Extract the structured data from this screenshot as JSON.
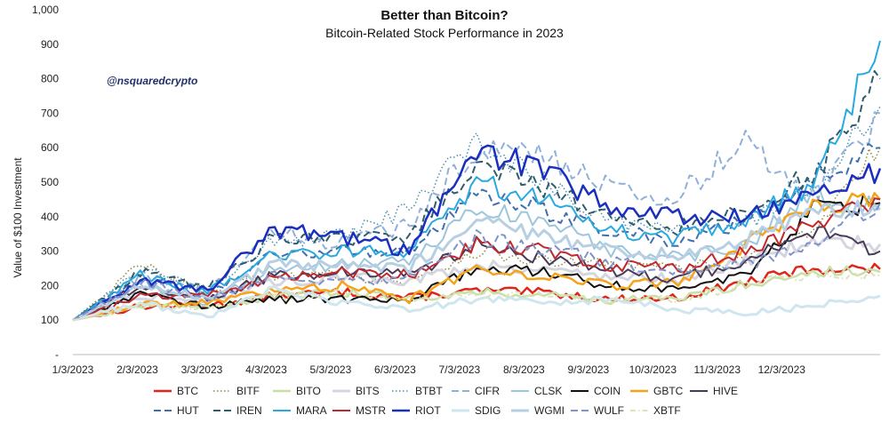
{
  "chart_data": {
    "type": "line",
    "title": "Better than Bitcoin?",
    "subtitle": "Bitcoin-Related Stock Performance in 2023",
    "ylabel": "Value of $100 Investment",
    "xlabel": "",
    "handle": "@nsquaredcrypto",
    "ylim": [
      0,
      1000
    ],
    "y_ticks": [
      0,
      100,
      200,
      300,
      400,
      500,
      600,
      700,
      800,
      900,
      1000
    ],
    "y_tick_labels": [
      "-",
      "100",
      "200",
      "300",
      "400",
      "500",
      "600",
      "700",
      "800",
      "900",
      "1,000"
    ],
    "x_tick_labels": [
      "1/3/2023",
      "2/3/2023",
      "3/3/2023",
      "4/3/2023",
      "5/3/2023",
      "6/3/2023",
      "7/3/2023",
      "8/3/2023",
      "9/3/2023",
      "10/3/2023",
      "11/3/2023",
      "12/3/2023"
    ],
    "grid": false,
    "legend_position": "bottom",
    "series": [
      {
        "name": "BTC",
        "color": "#e0251b",
        "dash": "solid",
        "width": 2.5,
        "values": [
          100,
          140,
          142,
          170,
          182,
          165,
          185,
          180,
          160,
          165,
          210,
          250,
          248
        ]
      },
      {
        "name": "BITF",
        "color": "#8a8a3a",
        "dash": "dotted",
        "width": 1.5,
        "values": [
          100,
          260,
          180,
          230,
          230,
          210,
          300,
          270,
          260,
          250,
          280,
          360,
          600
        ]
      },
      {
        "name": "BITO",
        "color": "#c9dfa8",
        "dash": "solid",
        "width": 2.5,
        "values": [
          100,
          142,
          140,
          168,
          180,
          165,
          180,
          175,
          158,
          162,
          205,
          240,
          240
        ]
      },
      {
        "name": "BITS",
        "color": "#d5d5e0",
        "dash": "solid",
        "width": 3,
        "values": [
          100,
          170,
          160,
          210,
          225,
          215,
          260,
          250,
          225,
          220,
          270,
          330,
          320
        ]
      },
      {
        "name": "BTBT",
        "color": "#4a8fb0",
        "dash": "dotted",
        "width": 1.5,
        "values": [
          100,
          250,
          200,
          330,
          340,
          420,
          620,
          500,
          390,
          370,
          380,
          480,
          720
        ]
      },
      {
        "name": "CIFR",
        "color": "#8fb0d8",
        "dash": "dashed",
        "width": 2,
        "values": [
          100,
          230,
          180,
          360,
          320,
          380,
          600,
          580,
          480,
          460,
          620,
          460,
          700
        ]
      },
      {
        "name": "CLSK",
        "color": "#9cc6dc",
        "dash": "solid",
        "width": 2,
        "values": [
          100,
          200,
          150,
          250,
          260,
          270,
          420,
          390,
          300,
          280,
          320,
          460,
          440
        ]
      },
      {
        "name": "COIN",
        "color": "#111111",
        "dash": "solid",
        "width": 2,
        "values": [
          100,
          180,
          140,
          160,
          160,
          160,
          250,
          240,
          200,
          190,
          230,
          420,
          440
        ]
      },
      {
        "name": "GBTC",
        "color": "#f5a31a",
        "dash": "solid",
        "width": 2.5,
        "values": [
          100,
          145,
          150,
          185,
          200,
          160,
          250,
          230,
          200,
          210,
          320,
          420,
          450
        ]
      },
      {
        "name": "HIVE",
        "color": "#4a3a5a",
        "dash": "solid",
        "width": 2,
        "values": [
          100,
          200,
          160,
          230,
          240,
          230,
          320,
          280,
          240,
          220,
          270,
          360,
          300
        ]
      },
      {
        "name": "HUT",
        "color": "#3f6fb0",
        "dash": "dashed",
        "width": 2,
        "values": [
          100,
          220,
          170,
          290,
          300,
          300,
          480,
          420,
          360,
          320,
          390,
          520,
          600
        ]
      },
      {
        "name": "IREN",
        "color": "#2f5d6b",
        "dash": "dashed",
        "width": 2,
        "values": [
          100,
          240,
          190,
          340,
          330,
          340,
          560,
          480,
          400,
          370,
          420,
          520,
          800
        ]
      },
      {
        "name": "MARA",
        "color": "#29a9e0",
        "dash": "solid",
        "width": 2,
        "values": [
          100,
          230,
          180,
          290,
          300,
          300,
          500,
          450,
          360,
          340,
          380,
          500,
          910
        ]
      },
      {
        "name": "MSTR",
        "color": "#c0282d",
        "dash": "solid",
        "width": 2,
        "values": [
          100,
          170,
          170,
          220,
          240,
          230,
          320,
          300,
          260,
          250,
          300,
          380,
          450
        ]
      },
      {
        "name": "RIOT",
        "color": "#1b2fbf",
        "dash": "solid",
        "width": 2.5,
        "values": [
          100,
          210,
          190,
          360,
          340,
          300,
          590,
          540,
          420,
          400,
          410,
          470,
          540
        ]
      },
      {
        "name": "SDIG",
        "color": "#cfe6ef",
        "dash": "solid",
        "width": 3,
        "values": [
          100,
          150,
          110,
          190,
          150,
          130,
          160,
          150,
          160,
          130,
          120,
          140,
          170
        ]
      },
      {
        "name": "WGMI",
        "color": "#b6cfe3",
        "dash": "solid",
        "width": 3,
        "values": [
          100,
          195,
          165,
          260,
          260,
          250,
          380,
          350,
          300,
          290,
          330,
          420,
          420
        ]
      },
      {
        "name": "WULF",
        "color": "#7d93c9",
        "dash": "dashed",
        "width": 2,
        "values": [
          100,
          210,
          160,
          230,
          210,
          220,
          340,
          310,
          270,
          240,
          260,
          320,
          440
        ]
      },
      {
        "name": "XBTF",
        "color": "#d8e6b8",
        "dash": "dashdot",
        "width": 2,
        "values": [
          100,
          140,
          140,
          165,
          178,
          162,
          178,
          172,
          156,
          160,
          200,
          235,
          230
        ]
      }
    ]
  }
}
